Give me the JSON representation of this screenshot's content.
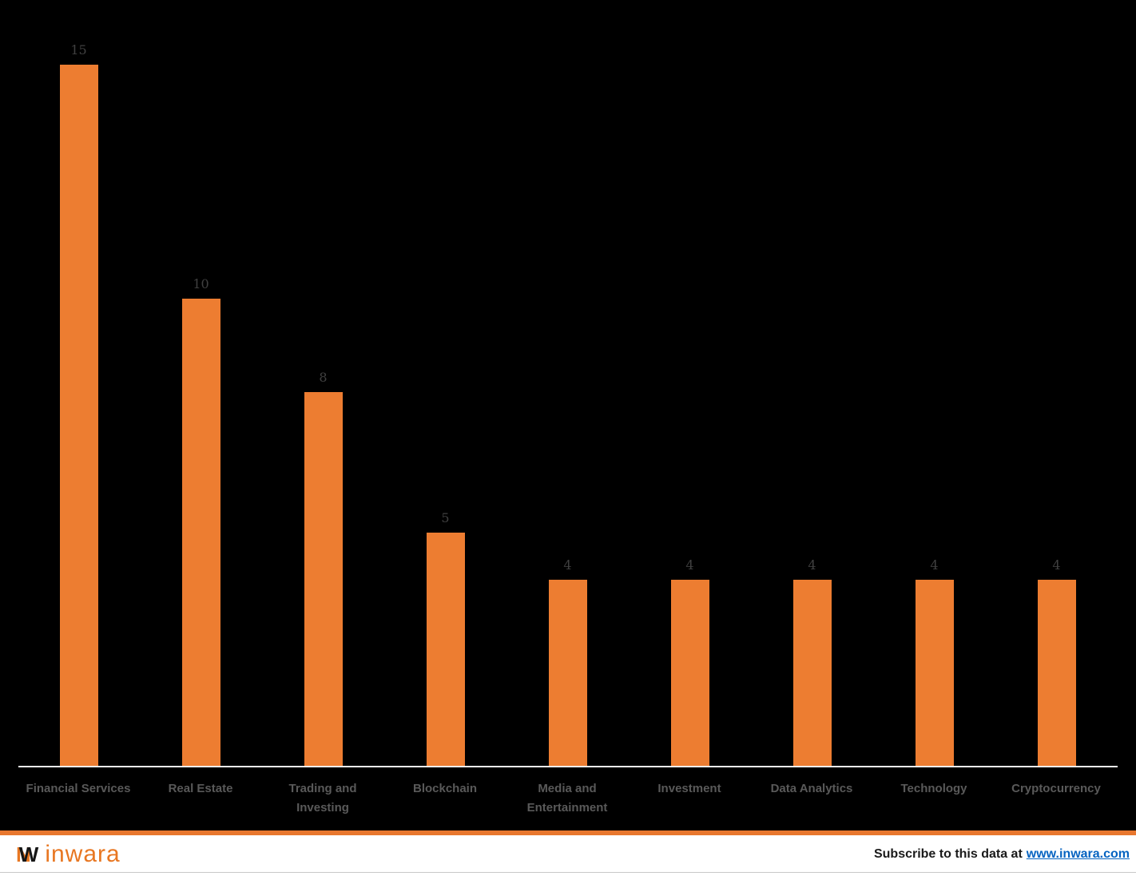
{
  "chart_data": {
    "type": "bar",
    "categories": [
      "Financial Services",
      "Real Estate",
      "Trading and Investing",
      "Blockchain",
      "Media and Entertainment",
      "Investment",
      "Data Analytics",
      "Technology",
      "Cryptocurrency"
    ],
    "values": [
      15,
      10,
      8,
      5,
      4,
      4,
      4,
      4,
      4
    ],
    "title": "",
    "xlabel": "",
    "ylabel": "",
    "ylim": [
      0,
      15
    ],
    "grid": false,
    "legend": false,
    "data_labels_shown": true,
    "bar_color": "#ED7D31",
    "background_color": "#000000",
    "data_label_color": "#404040",
    "category_label_color": "#595959",
    "axis_line_color": "#EFEFEF"
  },
  "footer": {
    "logo_monogram_left": "N",
    "logo_monogram_right": "W",
    "logo_text": "inwara",
    "logo_color": "#E87722",
    "accent_color": "#E8772E",
    "subscribe_text": "Subscribe to this data at",
    "subscribe_link": "www.inwara.com",
    "link_color": "#0563C1"
  }
}
